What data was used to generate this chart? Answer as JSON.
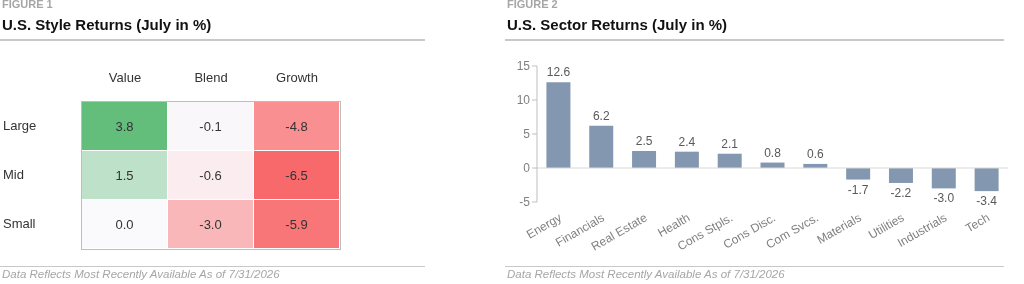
{
  "chart_data": [
    {
      "type": "heatmap",
      "subtitle": "FIGURE 1",
      "title": "U.S. Style Returns (July in %)",
      "categories": [
        "Value",
        "Blend",
        "Growth"
      ],
      "y_categories": [
        "Large",
        "Mid",
        "Small"
      ],
      "cells": [
        [
          3.8,
          -0.1,
          -4.8
        ],
        [
          1.5,
          -0.6,
          -6.5
        ],
        [
          0.0,
          -3.0,
          -5.9
        ]
      ],
      "cell_labels": [
        [
          "3.8",
          "-0.1",
          "-4.8"
        ],
        [
          "1.5",
          "-0.6",
          "-6.5"
        ],
        [
          "0.0",
          "-3.0",
          "-5.9"
        ]
      ],
      "annotations": [
        "Data Reflects Most Recently Available As of 7/31/2026"
      ]
    },
    {
      "type": "bar",
      "subtitle": "FIGURE 2",
      "title": "U.S. Sector Returns (July in %)",
      "categories": [
        "Energy",
        "Financials",
        "Real Estate",
        "Health",
        "Cons Stpls.",
        "Cons Disc.",
        "Com Svcs.",
        "Materials",
        "Utilities",
        "Industrials",
        "Tech"
      ],
      "values": [
        12.6,
        6.2,
        2.5,
        2.4,
        2.1,
        0.8,
        0.6,
        -1.7,
        -2.2,
        -3.0,
        -3.4
      ],
      "color": "#8497b0",
      "ylim": [
        -5,
        15
      ],
      "yticks": [
        -5,
        0,
        5,
        10,
        15
      ],
      "value_labels": [
        "12.6",
        "6.2",
        "2.5",
        "2.4",
        "2.1",
        "0.8",
        "0.6",
        "-1.7",
        "-2.2",
        "-3.0",
        "-3.4"
      ],
      "annotations": [
        "Data Reflects Most Recently Available As of 7/31/2026"
      ]
    }
  ]
}
